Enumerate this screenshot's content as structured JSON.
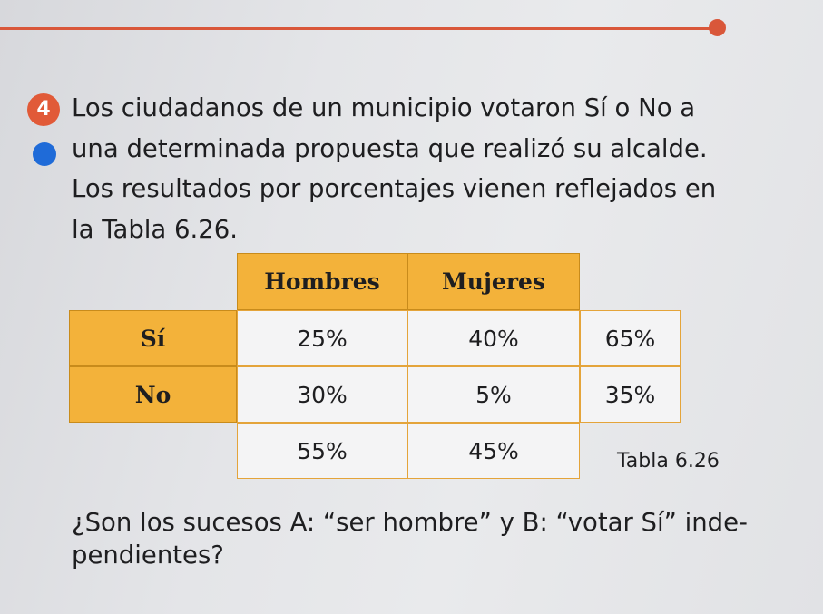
{
  "exercise": {
    "number": "4",
    "lines": [
      "Los ciudadanos de un municipio votaron Sí o No a",
      "una determinada propuesta que realizó su alcalde.",
      "Los resultados por porcentajes vienen reflejados en",
      "la Tabla 6.26."
    ]
  },
  "table": {
    "col_headers": [
      "Hombres",
      "Mujeres"
    ],
    "rows": [
      {
        "label": "Sí",
        "values": [
          "25%",
          "40%",
          "65%"
        ]
      },
      {
        "label": "No",
        "values": [
          "30%",
          "5%",
          "35%"
        ]
      }
    ],
    "totals": [
      "55%",
      "45%"
    ],
    "caption": "Tabla 6.26"
  },
  "question": {
    "lines": [
      "¿Son los sucesos A: “ser hombre” y B: “votar Sí” inde-",
      "pendientes?"
    ]
  },
  "colors": {
    "accent_red": "#d9573a",
    "bullet_blue": "#1f6bd8",
    "header_orange": "#f3b23a"
  }
}
